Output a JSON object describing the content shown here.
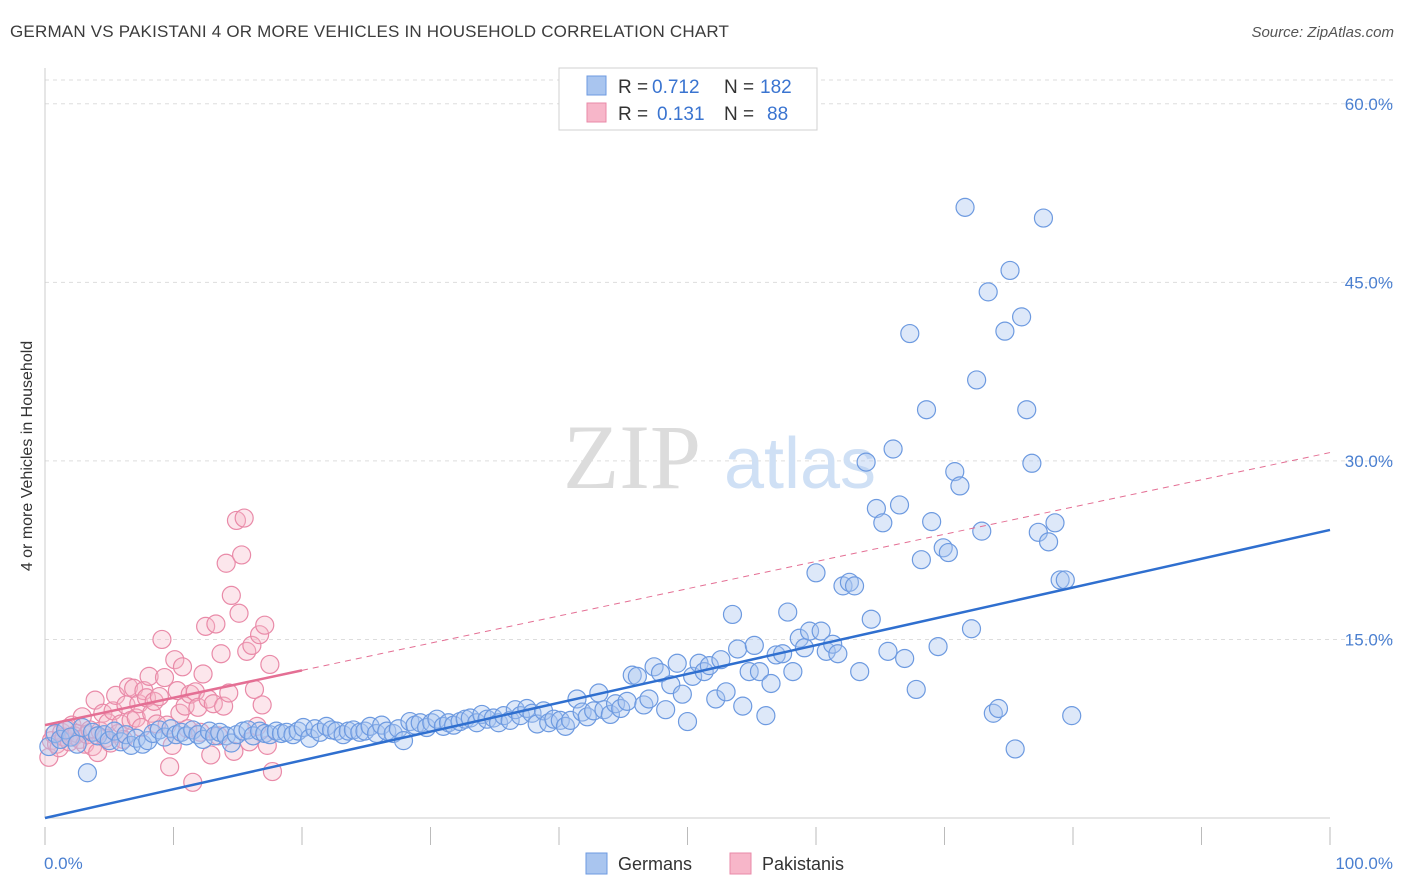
{
  "title": "GERMAN VS PAKISTANI 4 OR MORE VEHICLES IN HOUSEHOLD CORRELATION CHART",
  "source": "Source: ZipAtlas.com",
  "watermark": {
    "zip": "ZIP",
    "atlas": "atlas"
  },
  "legend": {
    "r_label": "R =",
    "n_label": "N =",
    "rows": [
      {
        "series": "Germans",
        "r": "0.712",
        "n": "182",
        "color": "#a9c5ef",
        "stroke": "#6d9ae0"
      },
      {
        "series": "Pakistanis",
        "r": "0.131",
        "n": "88",
        "color": "#f7b6c9",
        "stroke": "#e98aa8"
      }
    ]
  },
  "chart_data": {
    "type": "scatter",
    "title": "GERMAN VS PAKISTANI 4 OR MORE VEHICLES IN HOUSEHOLD CORRELATION CHART",
    "xlabel": "",
    "ylabel": "4 or more Vehicles in Household",
    "xlim": [
      0,
      100
    ],
    "ylim": [
      0,
      62
    ],
    "x_tick_labels": [
      "0.0%",
      "100.0%"
    ],
    "y_ticks": [
      15,
      30,
      45,
      60
    ],
    "y_tick_labels": [
      "15.0%",
      "30.0%",
      "45.0%",
      "60.0%"
    ],
    "grid": "horizontal dashed",
    "legend_position": "top-center",
    "bottom_legend": [
      "Germans",
      "Pakistanis"
    ],
    "series": [
      {
        "name": "Germans",
        "color": "#a9c5ef",
        "stroke": "#6d9ae0",
        "line_color": "#2f6fcf",
        "trend": {
          "x": [
            0,
            100
          ],
          "y": [
            0.0,
            24.2
          ]
        },
        "points": [
          [
            0.3,
            6.0
          ],
          [
            0.8,
            7.1
          ],
          [
            1.2,
            6.6
          ],
          [
            1.6,
            7.4
          ],
          [
            2.0,
            6.8
          ],
          [
            2.5,
            6.2
          ],
          [
            2.9,
            7.6
          ],
          [
            3.3,
            3.8
          ],
          [
            3.7,
            7.2
          ],
          [
            4.1,
            6.9
          ],
          [
            4.6,
            7.0
          ],
          [
            5.0,
            6.5
          ],
          [
            5.4,
            7.3
          ],
          [
            5.9,
            6.4
          ],
          [
            6.3,
            7.0
          ],
          [
            6.7,
            6.1
          ],
          [
            7.1,
            6.7
          ],
          [
            7.6,
            6.2
          ],
          [
            8.0,
            6.5
          ],
          [
            8.4,
            7.1
          ],
          [
            8.9,
            7.4
          ],
          [
            9.3,
            6.8
          ],
          [
            9.8,
            7.5
          ],
          [
            10.2,
            7.0
          ],
          [
            10.6,
            7.2
          ],
          [
            11.0,
            6.9
          ],
          [
            11.5,
            7.4
          ],
          [
            11.9,
            7.0
          ],
          [
            12.3,
            6.6
          ],
          [
            12.8,
            7.3
          ],
          [
            13.2,
            6.9
          ],
          [
            13.6,
            7.2
          ],
          [
            14.1,
            6.9
          ],
          [
            14.5,
            6.3
          ],
          [
            14.9,
            7.0
          ],
          [
            15.4,
            7.3
          ],
          [
            15.8,
            7.4
          ],
          [
            16.2,
            6.9
          ],
          [
            16.7,
            7.3
          ],
          [
            17.1,
            7.1
          ],
          [
            17.5,
            7.0
          ],
          [
            18.0,
            7.3
          ],
          [
            18.4,
            7.1
          ],
          [
            18.8,
            7.2
          ],
          [
            19.3,
            7.0
          ],
          [
            19.7,
            7.3
          ],
          [
            20.1,
            7.6
          ],
          [
            20.6,
            6.7
          ],
          [
            21.0,
            7.5
          ],
          [
            21.4,
            7.2
          ],
          [
            21.9,
            7.7
          ],
          [
            22.3,
            7.4
          ],
          [
            22.7,
            7.3
          ],
          [
            23.2,
            7.0
          ],
          [
            23.6,
            7.3
          ],
          [
            24.0,
            7.4
          ],
          [
            24.5,
            7.2
          ],
          [
            24.9,
            7.3
          ],
          [
            25.3,
            7.7
          ],
          [
            25.8,
            7.1
          ],
          [
            26.2,
            7.8
          ],
          [
            26.6,
            7.3
          ],
          [
            27.1,
            7.1
          ],
          [
            27.5,
            7.5
          ],
          [
            27.9,
            6.5
          ],
          [
            28.4,
            8.1
          ],
          [
            28.8,
            7.8
          ],
          [
            29.2,
            8.0
          ],
          [
            29.7,
            7.6
          ],
          [
            30.1,
            8.0
          ],
          [
            30.5,
            8.3
          ],
          [
            31.0,
            7.7
          ],
          [
            31.4,
            8.0
          ],
          [
            31.8,
            7.8
          ],
          [
            32.3,
            8.1
          ],
          [
            32.7,
            8.3
          ],
          [
            33.1,
            8.4
          ],
          [
            33.6,
            8.0
          ],
          [
            34.0,
            8.7
          ],
          [
            34.4,
            8.3
          ],
          [
            34.9,
            8.4
          ],
          [
            35.3,
            8.0
          ],
          [
            35.7,
            8.6
          ],
          [
            36.2,
            8.2
          ],
          [
            36.6,
            9.1
          ],
          [
            37.0,
            8.6
          ],
          [
            37.5,
            9.2
          ],
          [
            37.9,
            8.8
          ],
          [
            38.3,
            7.9
          ],
          [
            38.8,
            9.0
          ],
          [
            39.2,
            8.0
          ],
          [
            39.6,
            8.3
          ],
          [
            40.1,
            8.2
          ],
          [
            40.5,
            7.7
          ],
          [
            40.9,
            8.2
          ],
          [
            41.4,
            10.0
          ],
          [
            41.8,
            8.9
          ],
          [
            42.2,
            8.5
          ],
          [
            42.7,
            9.0
          ],
          [
            43.1,
            10.5
          ],
          [
            43.5,
            9.1
          ],
          [
            44.0,
            8.7
          ],
          [
            44.4,
            9.6
          ],
          [
            44.8,
            9.2
          ],
          [
            45.3,
            9.8
          ],
          [
            45.7,
            12.0
          ],
          [
            46.1,
            11.9
          ],
          [
            46.6,
            9.5
          ],
          [
            47.0,
            10.0
          ],
          [
            47.4,
            12.7
          ],
          [
            47.9,
            12.2
          ],
          [
            48.3,
            9.1
          ],
          [
            48.7,
            11.2
          ],
          [
            49.2,
            13.0
          ],
          [
            49.6,
            10.4
          ],
          [
            50.0,
            8.1
          ],
          [
            50.4,
            11.9
          ],
          [
            50.9,
            13.0
          ],
          [
            51.3,
            12.3
          ],
          [
            51.7,
            12.8
          ],
          [
            52.2,
            10.0
          ],
          [
            52.6,
            13.3
          ],
          [
            53.0,
            10.6
          ],
          [
            53.5,
            17.1
          ],
          [
            53.9,
            14.2
          ],
          [
            54.3,
            9.4
          ],
          [
            54.8,
            12.3
          ],
          [
            55.2,
            14.5
          ],
          [
            55.6,
            12.3
          ],
          [
            56.1,
            8.6
          ],
          [
            56.5,
            11.3
          ],
          [
            56.9,
            13.7
          ],
          [
            57.4,
            13.8
          ],
          [
            57.8,
            17.3
          ],
          [
            58.2,
            12.3
          ],
          [
            58.7,
            15.1
          ],
          [
            59.1,
            14.3
          ],
          [
            59.5,
            15.7
          ],
          [
            60.0,
            20.6
          ],
          [
            60.4,
            15.7
          ],
          [
            60.8,
            14.0
          ],
          [
            61.3,
            14.6
          ],
          [
            61.7,
            13.8
          ],
          [
            62.1,
            19.5
          ],
          [
            62.6,
            19.8
          ],
          [
            63.0,
            19.5
          ],
          [
            63.4,
            12.3
          ],
          [
            63.9,
            29.9
          ],
          [
            64.3,
            16.7
          ],
          [
            64.7,
            26.0
          ],
          [
            65.2,
            24.8
          ],
          [
            65.6,
            14.0
          ],
          [
            66.0,
            31.0
          ],
          [
            66.5,
            26.3
          ],
          [
            66.9,
            13.4
          ],
          [
            67.3,
            40.7
          ],
          [
            67.8,
            10.8
          ],
          [
            68.2,
            21.7
          ],
          [
            68.6,
            34.3
          ],
          [
            69.0,
            24.9
          ],
          [
            69.5,
            14.4
          ],
          [
            69.9,
            22.7
          ],
          [
            70.3,
            22.3
          ],
          [
            70.8,
            29.1
          ],
          [
            71.2,
            27.9
          ],
          [
            71.6,
            51.3
          ],
          [
            72.1,
            15.9
          ],
          [
            72.5,
            36.8
          ],
          [
            72.9,
            24.1
          ],
          [
            73.4,
            44.2
          ],
          [
            73.8,
            8.8
          ],
          [
            74.2,
            9.2
          ],
          [
            74.7,
            40.9
          ],
          [
            75.1,
            46.0
          ],
          [
            75.5,
            5.8
          ],
          [
            76.0,
            42.1
          ],
          [
            76.4,
            34.3
          ],
          [
            76.8,
            29.8
          ],
          [
            77.3,
            24.0
          ],
          [
            77.7,
            50.4
          ],
          [
            78.1,
            23.2
          ],
          [
            78.6,
            24.8
          ],
          [
            79.0,
            20.0
          ],
          [
            79.4,
            20.0
          ],
          [
            79.9,
            8.6
          ]
        ]
      },
      {
        "name": "Pakistanis",
        "color": "#f7b6c9",
        "stroke": "#e98aa8",
        "line_color": "#e46f94",
        "trend": {
          "x": [
            0,
            20
          ],
          "y": [
            7.8,
            12.4
          ]
        },
        "trend_extension": {
          "x": [
            20,
            100
          ],
          "y": [
            12.4,
            30.7
          ]
        },
        "points": [
          [
            0.3,
            5.1
          ],
          [
            0.5,
            6.5
          ],
          [
            0.7,
            7.0
          ],
          [
            0.9,
            6.2
          ],
          [
            1.1,
            5.9
          ],
          [
            1.3,
            7.2
          ],
          [
            1.5,
            6.8
          ],
          [
            1.7,
            7.5
          ],
          [
            1.9,
            6.4
          ],
          [
            2.1,
            7.8
          ],
          [
            2.3,
            6.9
          ],
          [
            2.5,
            7.1
          ],
          [
            2.7,
            6.6
          ],
          [
            2.9,
            8.5
          ],
          [
            3.1,
            6.2
          ],
          [
            3.3,
            7.0
          ],
          [
            3.5,
            7.4
          ],
          [
            3.7,
            6.0
          ],
          [
            3.9,
            9.9
          ],
          [
            4.1,
            5.5
          ],
          [
            4.3,
            7.3
          ],
          [
            4.5,
            8.8
          ],
          [
            4.7,
            6.7
          ],
          [
            4.9,
            8.0
          ],
          [
            5.1,
            6.3
          ],
          [
            5.3,
            9.0
          ],
          [
            5.5,
            10.3
          ],
          [
            5.7,
            7.1
          ],
          [
            5.9,
            7.9
          ],
          [
            6.1,
            6.6
          ],
          [
            6.3,
            9.5
          ],
          [
            6.5,
            11.0
          ],
          [
            6.7,
            8.2
          ],
          [
            6.9,
            10.9
          ],
          [
            7.1,
            8.4
          ],
          [
            7.3,
            9.6
          ],
          [
            7.5,
            7.6
          ],
          [
            7.7,
            10.7
          ],
          [
            7.9,
            10.1
          ],
          [
            8.1,
            11.9
          ],
          [
            8.3,
            8.8
          ],
          [
            8.5,
            9.8
          ],
          [
            8.7,
            7.9
          ],
          [
            8.9,
            10.2
          ],
          [
            9.1,
            15.0
          ],
          [
            9.3,
            11.8
          ],
          [
            9.5,
            7.8
          ],
          [
            9.7,
            4.3
          ],
          [
            9.9,
            6.1
          ],
          [
            10.1,
            13.3
          ],
          [
            10.3,
            10.7
          ],
          [
            10.5,
            8.8
          ],
          [
            10.7,
            12.7
          ],
          [
            10.9,
            9.4
          ],
          [
            11.1,
            7.5
          ],
          [
            11.3,
            10.4
          ],
          [
            11.5,
            3.0
          ],
          [
            11.7,
            10.6
          ],
          [
            11.9,
            9.3
          ],
          [
            12.1,
            7.2
          ],
          [
            12.3,
            12.1
          ],
          [
            12.5,
            16.1
          ],
          [
            12.7,
            10.0
          ],
          [
            12.9,
            5.3
          ],
          [
            13.1,
            9.6
          ],
          [
            13.3,
            16.3
          ],
          [
            13.5,
            6.9
          ],
          [
            13.7,
            13.8
          ],
          [
            13.9,
            9.4
          ],
          [
            14.1,
            21.4
          ],
          [
            14.3,
            10.5
          ],
          [
            14.5,
            18.7
          ],
          [
            14.7,
            5.6
          ],
          [
            14.9,
            25.0
          ],
          [
            15.1,
            17.2
          ],
          [
            15.3,
            22.1
          ],
          [
            15.5,
            25.2
          ],
          [
            15.7,
            14.0
          ],
          [
            15.9,
            6.4
          ],
          [
            16.1,
            14.5
          ],
          [
            16.3,
            10.8
          ],
          [
            16.5,
            7.7
          ],
          [
            16.7,
            15.4
          ],
          [
            16.9,
            9.5
          ],
          [
            17.1,
            16.2
          ],
          [
            17.3,
            6.1
          ],
          [
            17.5,
            12.9
          ],
          [
            17.7,
            3.9
          ]
        ]
      }
    ]
  }
}
